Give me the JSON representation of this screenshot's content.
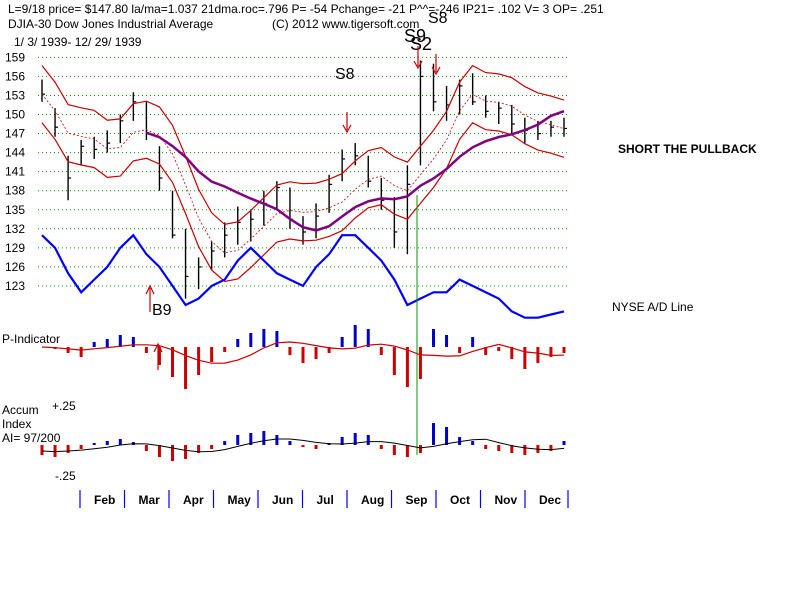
{
  "header": {
    "line1": "L=9/18  price= $147.80  la/ma=1.037 21dma.roc=.796 P= -54 Pchange= -21 P^^=-246 IP21= .102 V= 3 OP= .251",
    "line2_left": "DJIA-30  Dow Jones Industrial Average",
    "line2_right": "(C) 2012 www.tigersoft.com",
    "date_range": "1/ 3/ 1939- 12/ 29/ 1939"
  },
  "annotations": {
    "short_pullback": "SHORT THE PULLBACK",
    "nyse_ad": "NYSE A/D Line",
    "p_indicator": "P-Indicator",
    "accum_1": "Accum",
    "accum_2": "Index",
    "accum_3": "AI= 97/200",
    "signal_s8_jul": "S8",
    "signal_s9_sep": "S9",
    "signal_s2_sep": "S2",
    "signal_s8_sep": "S8",
    "signal_b9_mar": "B9"
  },
  "chart_data": {
    "type": "bar",
    "title": "DJIA-30 Dow Jones Industrial Average 1939",
    "price_axis": {
      "ticks": [
        159,
        156,
        153,
        150,
        147,
        144,
        141,
        138,
        135,
        132,
        129,
        126,
        123
      ],
      "ylim": [
        120,
        160
      ]
    },
    "accum_axis": {
      "ticks": [
        "+.25",
        "-.25"
      ],
      "ylim": [
        -0.3,
        0.3
      ]
    },
    "months": [
      "Feb",
      "Mar",
      "Apr",
      "May",
      "Jun",
      "Jul",
      "Aug",
      "Sep",
      "Oct",
      "Nov",
      "Dec"
    ],
    "price_weekly": [
      {
        "w": 1,
        "h": 155.5,
        "l": 152.0,
        "c": 153.2
      },
      {
        "w": 2,
        "h": 151.0,
        "l": 146.5,
        "c": 148.0
      },
      {
        "w": 3,
        "h": 143.5,
        "l": 136.5,
        "c": 140.0
      },
      {
        "w": 4,
        "h": 146.0,
        "l": 142.0,
        "c": 145.0
      },
      {
        "w": 5,
        "h": 146.5,
        "l": 143.0,
        "c": 144.5
      },
      {
        "w": 6,
        "h": 147.5,
        "l": 144.0,
        "c": 145.5
      },
      {
        "w": 7,
        "h": 150.0,
        "l": 145.5,
        "c": 149.0
      },
      {
        "w": 8,
        "h": 153.5,
        "l": 149.0,
        "c": 152.0
      },
      {
        "w": 9,
        "h": 152.0,
        "l": 146.0,
        "c": 147.0
      },
      {
        "w": 10,
        "h": 145.0,
        "l": 138.0,
        "c": 140.0
      },
      {
        "w": 11,
        "h": 138.0,
        "l": 130.5,
        "c": 131.0
      },
      {
        "w": 12,
        "h": 132.0,
        "l": 121.0,
        "c": 124.5
      },
      {
        "w": 13,
        "h": 127.5,
        "l": 122.5,
        "c": 126.0
      },
      {
        "w": 14,
        "h": 130.0,
        "l": 125.5,
        "c": 128.5
      },
      {
        "w": 15,
        "h": 133.0,
        "l": 127.5,
        "c": 131.0
      },
      {
        "w": 16,
        "h": 135.5,
        "l": 129.5,
        "c": 133.0
      },
      {
        "w": 17,
        "h": 135.0,
        "l": 130.0,
        "c": 133.5
      },
      {
        "w": 18,
        "h": 138.0,
        "l": 132.5,
        "c": 136.0
      },
      {
        "w": 19,
        "h": 139.5,
        "l": 135.0,
        "c": 138.5
      },
      {
        "w": 20,
        "h": 138.5,
        "l": 132.0,
        "c": 133.5
      },
      {
        "w": 21,
        "h": 134.0,
        "l": 129.5,
        "c": 131.5
      },
      {
        "w": 22,
        "h": 136.0,
        "l": 130.5,
        "c": 134.0
      },
      {
        "w": 23,
        "h": 140.5,
        "l": 134.5,
        "c": 139.0
      },
      {
        "w": 24,
        "h": 144.5,
        "l": 139.5,
        "c": 143.0
      },
      {
        "w": 25,
        "h": 145.5,
        "l": 142.0,
        "c": 143.5
      },
      {
        "w": 26,
        "h": 143.5,
        "l": 138.5,
        "c": 139.5
      },
      {
        "w": 27,
        "h": 140.0,
        "l": 135.0,
        "c": 136.5
      },
      {
        "w": 28,
        "h": 137.0,
        "l": 129.0,
        "c": 131.5
      },
      {
        "w": 29,
        "h": 142.0,
        "l": 128.0,
        "c": 139.0
      },
      {
        "w": 30,
        "h": 158.5,
        "l": 142.0,
        "c": 156.0
      },
      {
        "w": 31,
        "h": 158.0,
        "l": 150.5,
        "c": 152.0
      },
      {
        "w": 32,
        "h": 154.5,
        "l": 149.0,
        "c": 151.5
      },
      {
        "w": 33,
        "h": 155.5,
        "l": 150.0,
        "c": 154.5
      },
      {
        "w": 34,
        "h": 156.5,
        "l": 151.5,
        "c": 152.0
      },
      {
        "w": 35,
        "h": 153.0,
        "l": 149.5,
        "c": 150.5
      },
      {
        "w": 36,
        "h": 152.0,
        "l": 148.5,
        "c": 151.0
      },
      {
        "w": 37,
        "h": 151.5,
        "l": 147.0,
        "c": 148.5
      },
      {
        "w": 38,
        "h": 149.5,
        "l": 145.5,
        "c": 147.5
      },
      {
        "w": 39,
        "h": 149.0,
        "l": 146.0,
        "c": 147.0
      },
      {
        "w": 40,
        "h": 149.0,
        "l": 146.5,
        "c": 148.0
      },
      {
        "w": 41,
        "h": 149.5,
        "l": 146.5,
        "c": 147.8
      }
    ],
    "series": [
      {
        "name": "Price",
        "color": "#000000"
      },
      {
        "name": "NYSE A/D Line",
        "color": "#0000ff"
      },
      {
        "name": "Moving average",
        "color": "#800080"
      },
      {
        "name": "Bands",
        "color": "#cc0000"
      },
      {
        "name": "P-Indicator",
        "color": "#cc0000"
      },
      {
        "name": "Accum Index",
        "color": "#0000cc"
      }
    ],
    "colors": {
      "price": "#000000",
      "ad_line": "#0000ff",
      "ma": "#800080",
      "band": "#cc0000",
      "pos_hist": "#0000cc",
      "neg_hist": "#cc0000",
      "grid": "#009900",
      "signal": "#cc0000",
      "month_tick": "#0000ff",
      "vline": "#009900"
    }
  }
}
